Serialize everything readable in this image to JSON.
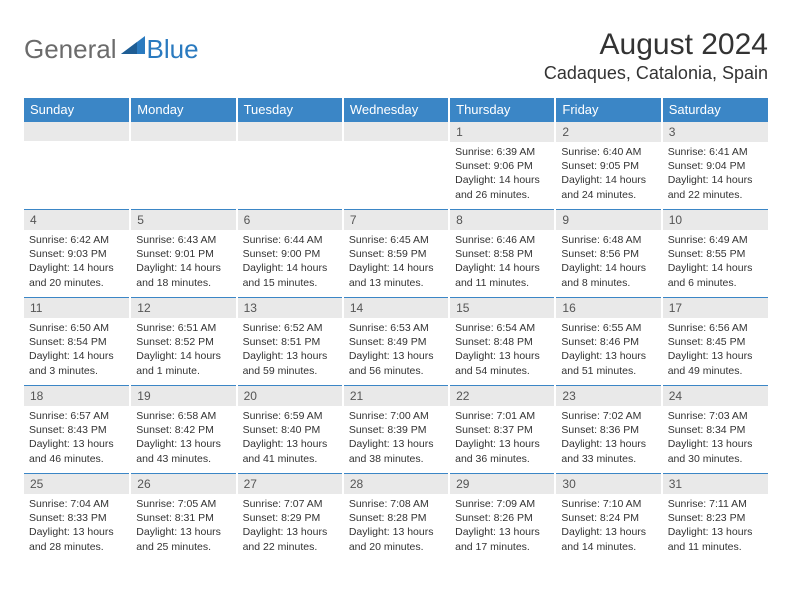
{
  "logo": {
    "general": "General",
    "blue": "Blue"
  },
  "title": "August 2024",
  "location": "Cadaques, Catalonia, Spain",
  "colors": {
    "header_bg": "#3b86c6",
    "header_text": "#ffffff",
    "daynum_bg": "#e9e9e9",
    "border_top": "#3b86c6",
    "body_text": "#333333",
    "logo_gray": "#6b6b6b",
    "logo_blue": "#2a7abf"
  },
  "weekdays": [
    "Sunday",
    "Monday",
    "Tuesday",
    "Wednesday",
    "Thursday",
    "Friday",
    "Saturday"
  ],
  "weeks": [
    [
      {
        "num": "",
        "sunrise": "",
        "sunset": "",
        "daylight": ""
      },
      {
        "num": "",
        "sunrise": "",
        "sunset": "",
        "daylight": ""
      },
      {
        "num": "",
        "sunrise": "",
        "sunset": "",
        "daylight": ""
      },
      {
        "num": "",
        "sunrise": "",
        "sunset": "",
        "daylight": ""
      },
      {
        "num": "1",
        "sunrise": "Sunrise: 6:39 AM",
        "sunset": "Sunset: 9:06 PM",
        "daylight": "Daylight: 14 hours and 26 minutes."
      },
      {
        "num": "2",
        "sunrise": "Sunrise: 6:40 AM",
        "sunset": "Sunset: 9:05 PM",
        "daylight": "Daylight: 14 hours and 24 minutes."
      },
      {
        "num": "3",
        "sunrise": "Sunrise: 6:41 AM",
        "sunset": "Sunset: 9:04 PM",
        "daylight": "Daylight: 14 hours and 22 minutes."
      }
    ],
    [
      {
        "num": "4",
        "sunrise": "Sunrise: 6:42 AM",
        "sunset": "Sunset: 9:03 PM",
        "daylight": "Daylight: 14 hours and 20 minutes."
      },
      {
        "num": "5",
        "sunrise": "Sunrise: 6:43 AM",
        "sunset": "Sunset: 9:01 PM",
        "daylight": "Daylight: 14 hours and 18 minutes."
      },
      {
        "num": "6",
        "sunrise": "Sunrise: 6:44 AM",
        "sunset": "Sunset: 9:00 PM",
        "daylight": "Daylight: 14 hours and 15 minutes."
      },
      {
        "num": "7",
        "sunrise": "Sunrise: 6:45 AM",
        "sunset": "Sunset: 8:59 PM",
        "daylight": "Daylight: 14 hours and 13 minutes."
      },
      {
        "num": "8",
        "sunrise": "Sunrise: 6:46 AM",
        "sunset": "Sunset: 8:58 PM",
        "daylight": "Daylight: 14 hours and 11 minutes."
      },
      {
        "num": "9",
        "sunrise": "Sunrise: 6:48 AM",
        "sunset": "Sunset: 8:56 PM",
        "daylight": "Daylight: 14 hours and 8 minutes."
      },
      {
        "num": "10",
        "sunrise": "Sunrise: 6:49 AM",
        "sunset": "Sunset: 8:55 PM",
        "daylight": "Daylight: 14 hours and 6 minutes."
      }
    ],
    [
      {
        "num": "11",
        "sunrise": "Sunrise: 6:50 AM",
        "sunset": "Sunset: 8:54 PM",
        "daylight": "Daylight: 14 hours and 3 minutes."
      },
      {
        "num": "12",
        "sunrise": "Sunrise: 6:51 AM",
        "sunset": "Sunset: 8:52 PM",
        "daylight": "Daylight: 14 hours and 1 minute."
      },
      {
        "num": "13",
        "sunrise": "Sunrise: 6:52 AM",
        "sunset": "Sunset: 8:51 PM",
        "daylight": "Daylight: 13 hours and 59 minutes."
      },
      {
        "num": "14",
        "sunrise": "Sunrise: 6:53 AM",
        "sunset": "Sunset: 8:49 PM",
        "daylight": "Daylight: 13 hours and 56 minutes."
      },
      {
        "num": "15",
        "sunrise": "Sunrise: 6:54 AM",
        "sunset": "Sunset: 8:48 PM",
        "daylight": "Daylight: 13 hours and 54 minutes."
      },
      {
        "num": "16",
        "sunrise": "Sunrise: 6:55 AM",
        "sunset": "Sunset: 8:46 PM",
        "daylight": "Daylight: 13 hours and 51 minutes."
      },
      {
        "num": "17",
        "sunrise": "Sunrise: 6:56 AM",
        "sunset": "Sunset: 8:45 PM",
        "daylight": "Daylight: 13 hours and 49 minutes."
      }
    ],
    [
      {
        "num": "18",
        "sunrise": "Sunrise: 6:57 AM",
        "sunset": "Sunset: 8:43 PM",
        "daylight": "Daylight: 13 hours and 46 minutes."
      },
      {
        "num": "19",
        "sunrise": "Sunrise: 6:58 AM",
        "sunset": "Sunset: 8:42 PM",
        "daylight": "Daylight: 13 hours and 43 minutes."
      },
      {
        "num": "20",
        "sunrise": "Sunrise: 6:59 AM",
        "sunset": "Sunset: 8:40 PM",
        "daylight": "Daylight: 13 hours and 41 minutes."
      },
      {
        "num": "21",
        "sunrise": "Sunrise: 7:00 AM",
        "sunset": "Sunset: 8:39 PM",
        "daylight": "Daylight: 13 hours and 38 minutes."
      },
      {
        "num": "22",
        "sunrise": "Sunrise: 7:01 AM",
        "sunset": "Sunset: 8:37 PM",
        "daylight": "Daylight: 13 hours and 36 minutes."
      },
      {
        "num": "23",
        "sunrise": "Sunrise: 7:02 AM",
        "sunset": "Sunset: 8:36 PM",
        "daylight": "Daylight: 13 hours and 33 minutes."
      },
      {
        "num": "24",
        "sunrise": "Sunrise: 7:03 AM",
        "sunset": "Sunset: 8:34 PM",
        "daylight": "Daylight: 13 hours and 30 minutes."
      }
    ],
    [
      {
        "num": "25",
        "sunrise": "Sunrise: 7:04 AM",
        "sunset": "Sunset: 8:33 PM",
        "daylight": "Daylight: 13 hours and 28 minutes."
      },
      {
        "num": "26",
        "sunrise": "Sunrise: 7:05 AM",
        "sunset": "Sunset: 8:31 PM",
        "daylight": "Daylight: 13 hours and 25 minutes."
      },
      {
        "num": "27",
        "sunrise": "Sunrise: 7:07 AM",
        "sunset": "Sunset: 8:29 PM",
        "daylight": "Daylight: 13 hours and 22 minutes."
      },
      {
        "num": "28",
        "sunrise": "Sunrise: 7:08 AM",
        "sunset": "Sunset: 8:28 PM",
        "daylight": "Daylight: 13 hours and 20 minutes."
      },
      {
        "num": "29",
        "sunrise": "Sunrise: 7:09 AM",
        "sunset": "Sunset: 8:26 PM",
        "daylight": "Daylight: 13 hours and 17 minutes."
      },
      {
        "num": "30",
        "sunrise": "Sunrise: 7:10 AM",
        "sunset": "Sunset: 8:24 PM",
        "daylight": "Daylight: 13 hours and 14 minutes."
      },
      {
        "num": "31",
        "sunrise": "Sunrise: 7:11 AM",
        "sunset": "Sunset: 8:23 PM",
        "daylight": "Daylight: 13 hours and 11 minutes."
      }
    ]
  ]
}
